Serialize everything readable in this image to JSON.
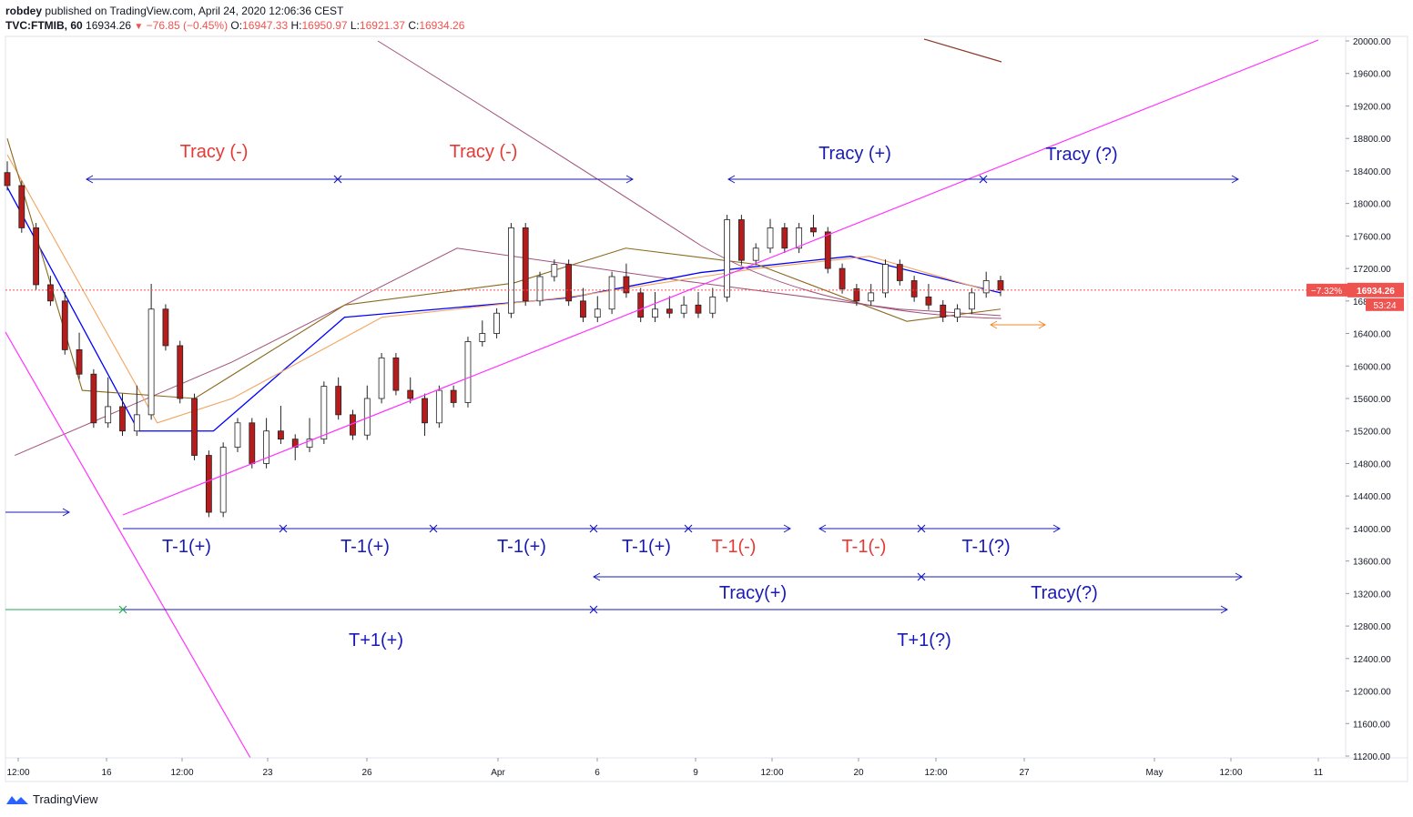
{
  "header": {
    "publisher": "robdey",
    "published_text": "published on TradingView.com, April 24, 2020 12:06:36 CEST",
    "symbol": "TVC:FTMIB, 60",
    "last": "16934.26",
    "change": "−76.85 (−0.45%)",
    "o_label": "O:",
    "o": "16947.33",
    "h_label": "H:",
    "h": "16950.97",
    "l_label": "L:",
    "l": "16921.37",
    "c_label": "C:",
    "c": "16934.26"
  },
  "brand": "TradingView",
  "price_badges": {
    "percent": "−7.32%",
    "price": "16934.26",
    "countdown": "53:24"
  },
  "colors": {
    "up_candle": "#ffffff",
    "down_candle": "#b71c1c",
    "candle_border": "#222222",
    "ma_blue": "#0000ff",
    "ma_orange": "#f4a460",
    "ma_brown": "#8b6a1f",
    "ma_purple": "#a0527a",
    "trendline_magenta": "#ff33ff",
    "annotation_blue": "#1a1ab8",
    "annotation_red": "#e53935",
    "price_line": "#ef5350"
  },
  "chart_data": {
    "type": "candlestick",
    "title": "",
    "ylim": [
      11200,
      20000
    ],
    "y_ticks": [
      "20000.00",
      "19600.00",
      "19200.00",
      "18800.00",
      "18400.00",
      "18000.00",
      "17600.00",
      "17200.00",
      "16800.00",
      "16400.00",
      "16000.00",
      "15600.00",
      "15200.00",
      "14800.00",
      "14400.00",
      "14000.00",
      "13600.00",
      "13200.00",
      "12800.00",
      "12400.00",
      "12000.00",
      "11600.00",
      "11200.00"
    ],
    "x_ticks": [
      "12:00",
      "16",
      "12:00",
      "23",
      "26",
      "Apr",
      "6",
      "9",
      "12:00",
      "20",
      "12:00",
      "27",
      "May",
      "12:00",
      "11"
    ],
    "last_price": 16934.26,
    "annotations": [
      {
        "text": "Tracy (-)",
        "color": "red"
      },
      {
        "text": "Tracy (-)",
        "color": "red"
      },
      {
        "text": "Tracy (+)",
        "color": "blue"
      },
      {
        "text": "Tracy (?)",
        "color": "blue"
      },
      {
        "text": "T-1(+)",
        "color": "blue"
      },
      {
        "text": "T-1(+)",
        "color": "blue"
      },
      {
        "text": "T-1(+)",
        "color": "blue"
      },
      {
        "text": "T-1(+)",
        "color": "blue"
      },
      {
        "text": "T-1(-)",
        "color": "red"
      },
      {
        "text": "T-1(-)",
        "color": "red"
      },
      {
        "text": "T-1(?)",
        "color": "blue"
      },
      {
        "text": "Tracy(+)",
        "color": "blue"
      },
      {
        "text": "Tracy(?)",
        "color": "blue"
      },
      {
        "text": "T+1(+)",
        "color": "blue"
      },
      {
        "text": "T+1(?)",
        "color": "blue"
      }
    ],
    "ma_purple": [
      [
        2,
        14900
      ],
      [
        60,
        16050
      ],
      [
        120,
        17450
      ],
      [
        180,
        17050
      ],
      [
        238,
        16700
      ],
      [
        265,
        16620
      ]
    ],
    "ma_blue": [
      [
        0,
        18200
      ],
      [
        35,
        15200
      ],
      [
        55,
        15200
      ],
      [
        90,
        16600
      ],
      [
        150,
        16840
      ],
      [
        185,
        17150
      ],
      [
        225,
        17350
      ],
      [
        265,
        16900
      ]
    ],
    "ma_orange": [
      [
        0,
        18600
      ],
      [
        40,
        15300
      ],
      [
        60,
        15600
      ],
      [
        100,
        16600
      ],
      [
        150,
        16850
      ],
      [
        200,
        17200
      ],
      [
        230,
        17350
      ],
      [
        260,
        16950
      ]
    ],
    "ma_brown": [
      [
        0,
        18800
      ],
      [
        20,
        15700
      ],
      [
        50,
        15600
      ],
      [
        90,
        16750
      ],
      [
        135,
        17020
      ],
      [
        165,
        17450
      ],
      [
        200,
        17250
      ],
      [
        240,
        16550
      ],
      [
        265,
        16700
      ]
    ],
    "ohlc": [
      [
        18380,
        18460,
        18300,
        18220
      ],
      [
        18220,
        18200,
        17900,
        17700
      ],
      [
        17700,
        17700,
        17400,
        17000
      ],
      [
        17000,
        17050,
        16900,
        16800
      ],
      [
        16800,
        16850,
        16500,
        16200
      ],
      [
        16200,
        16350,
        16000,
        15900
      ],
      [
        15900,
        15700,
        15500,
        15300
      ],
      [
        15300,
        15800,
        15700,
        15500
      ],
      [
        15500,
        15600,
        15400,
        15200
      ],
      [
        15200,
        15550,
        15700,
        15400
      ],
      [
        15400,
        16100,
        16950,
        16700
      ],
      [
        16700,
        16650,
        16400,
        16250
      ],
      [
        16250,
        16100,
        15800,
        15600
      ],
      [
        15600,
        15300,
        15000,
        14900
      ],
      [
        14900,
        14600,
        14300,
        14200
      ],
      [
        14200,
        14400,
        14800,
        15000
      ],
      [
        15000,
        15200,
        15100,
        15300
      ],
      [
        15300,
        15100,
        14900,
        14800
      ],
      [
        14800,
        15100,
        15300,
        15200
      ],
      [
        15200,
        15450,
        15300,
        15100
      ],
      [
        15100,
        15000,
        14900,
        15000
      ],
      [
        15000,
        15200,
        15300,
        15100
      ],
      [
        15100,
        15450,
        15600,
        15750
      ],
      [
        15750,
        15800,
        15500,
        15400
      ],
      [
        15400,
        15300,
        15200,
        15150
      ],
      [
        15150,
        15450,
        15700,
        15600
      ],
      [
        15600,
        15700,
        15900,
        16100
      ],
      [
        16100,
        15900,
        15800,
        15700
      ],
      [
        15700,
        15800,
        15650,
        15600
      ],
      [
        15600,
        15400,
        15200,
        15300
      ],
      [
        15300,
        15500,
        15600,
        15700
      ],
      [
        15700,
        15650,
        15600,
        15550
      ],
      [
        15550,
        15800,
        16000,
        16300
      ],
      [
        16300,
        16450,
        16500,
        16400
      ],
      [
        16400,
        16550,
        16600,
        16650
      ],
      [
        16650,
        16750,
        17500,
        17700
      ],
      [
        17700,
        17600,
        17000,
        16800
      ],
      [
        16800,
        16950,
        17000,
        17100
      ],
      [
        17100,
        17200,
        17150,
        17250
      ],
      [
        17250,
        17100,
        16900,
        16800
      ],
      [
        16800,
        16900,
        16700,
        16600
      ],
      [
        16600,
        16700,
        16800,
        16700
      ],
      [
        16700,
        16850,
        17000,
        17100
      ],
      [
        17100,
        17200,
        17000,
        16900
      ],
      [
        16900,
        16800,
        16700,
        16600
      ],
      [
        16600,
        16750,
        16850,
        16700
      ],
      [
        16700,
        16800,
        16750,
        16650
      ],
      [
        16650,
        16700,
        16800,
        16750
      ],
      [
        16750,
        16850,
        16700,
        16650
      ],
      [
        16650,
        16750,
        16900,
        16850
      ],
      [
        16850,
        17000,
        17500,
        17800
      ],
      [
        17800,
        17700,
        17400,
        17300
      ],
      [
        17300,
        17350,
        17400,
        17450
      ],
      [
        17450,
        17600,
        17750,
        17700
      ],
      [
        17700,
        17600,
        17500,
        17450
      ],
      [
        17450,
        17500,
        17600,
        17700
      ],
      [
        17700,
        17800,
        17750,
        17650
      ],
      [
        17650,
        17500,
        17300,
        17200
      ],
      [
        17200,
        17100,
        17000,
        16950
      ],
      [
        16950,
        16900,
        16850,
        16800
      ],
      [
        16800,
        16950,
        16950,
        16900
      ],
      [
        16900,
        17050,
        17150,
        17250
      ],
      [
        17250,
        17200,
        17100,
        17050
      ],
      [
        17050,
        16950,
        16900,
        16850
      ],
      [
        16850,
        16950,
        16800,
        16750
      ],
      [
        16750,
        16700,
        16650,
        16600
      ],
      [
        16600,
        16650,
        16700,
        16700
      ],
      [
        16700,
        16750,
        16850,
        16900
      ],
      [
        16900,
        17000,
        17100,
        17050
      ],
      [
        17050,
        16950,
        16920,
        16934
      ]
    ],
    "ohlc_note_order": "open, intermediate, mid, close approximations"
  }
}
